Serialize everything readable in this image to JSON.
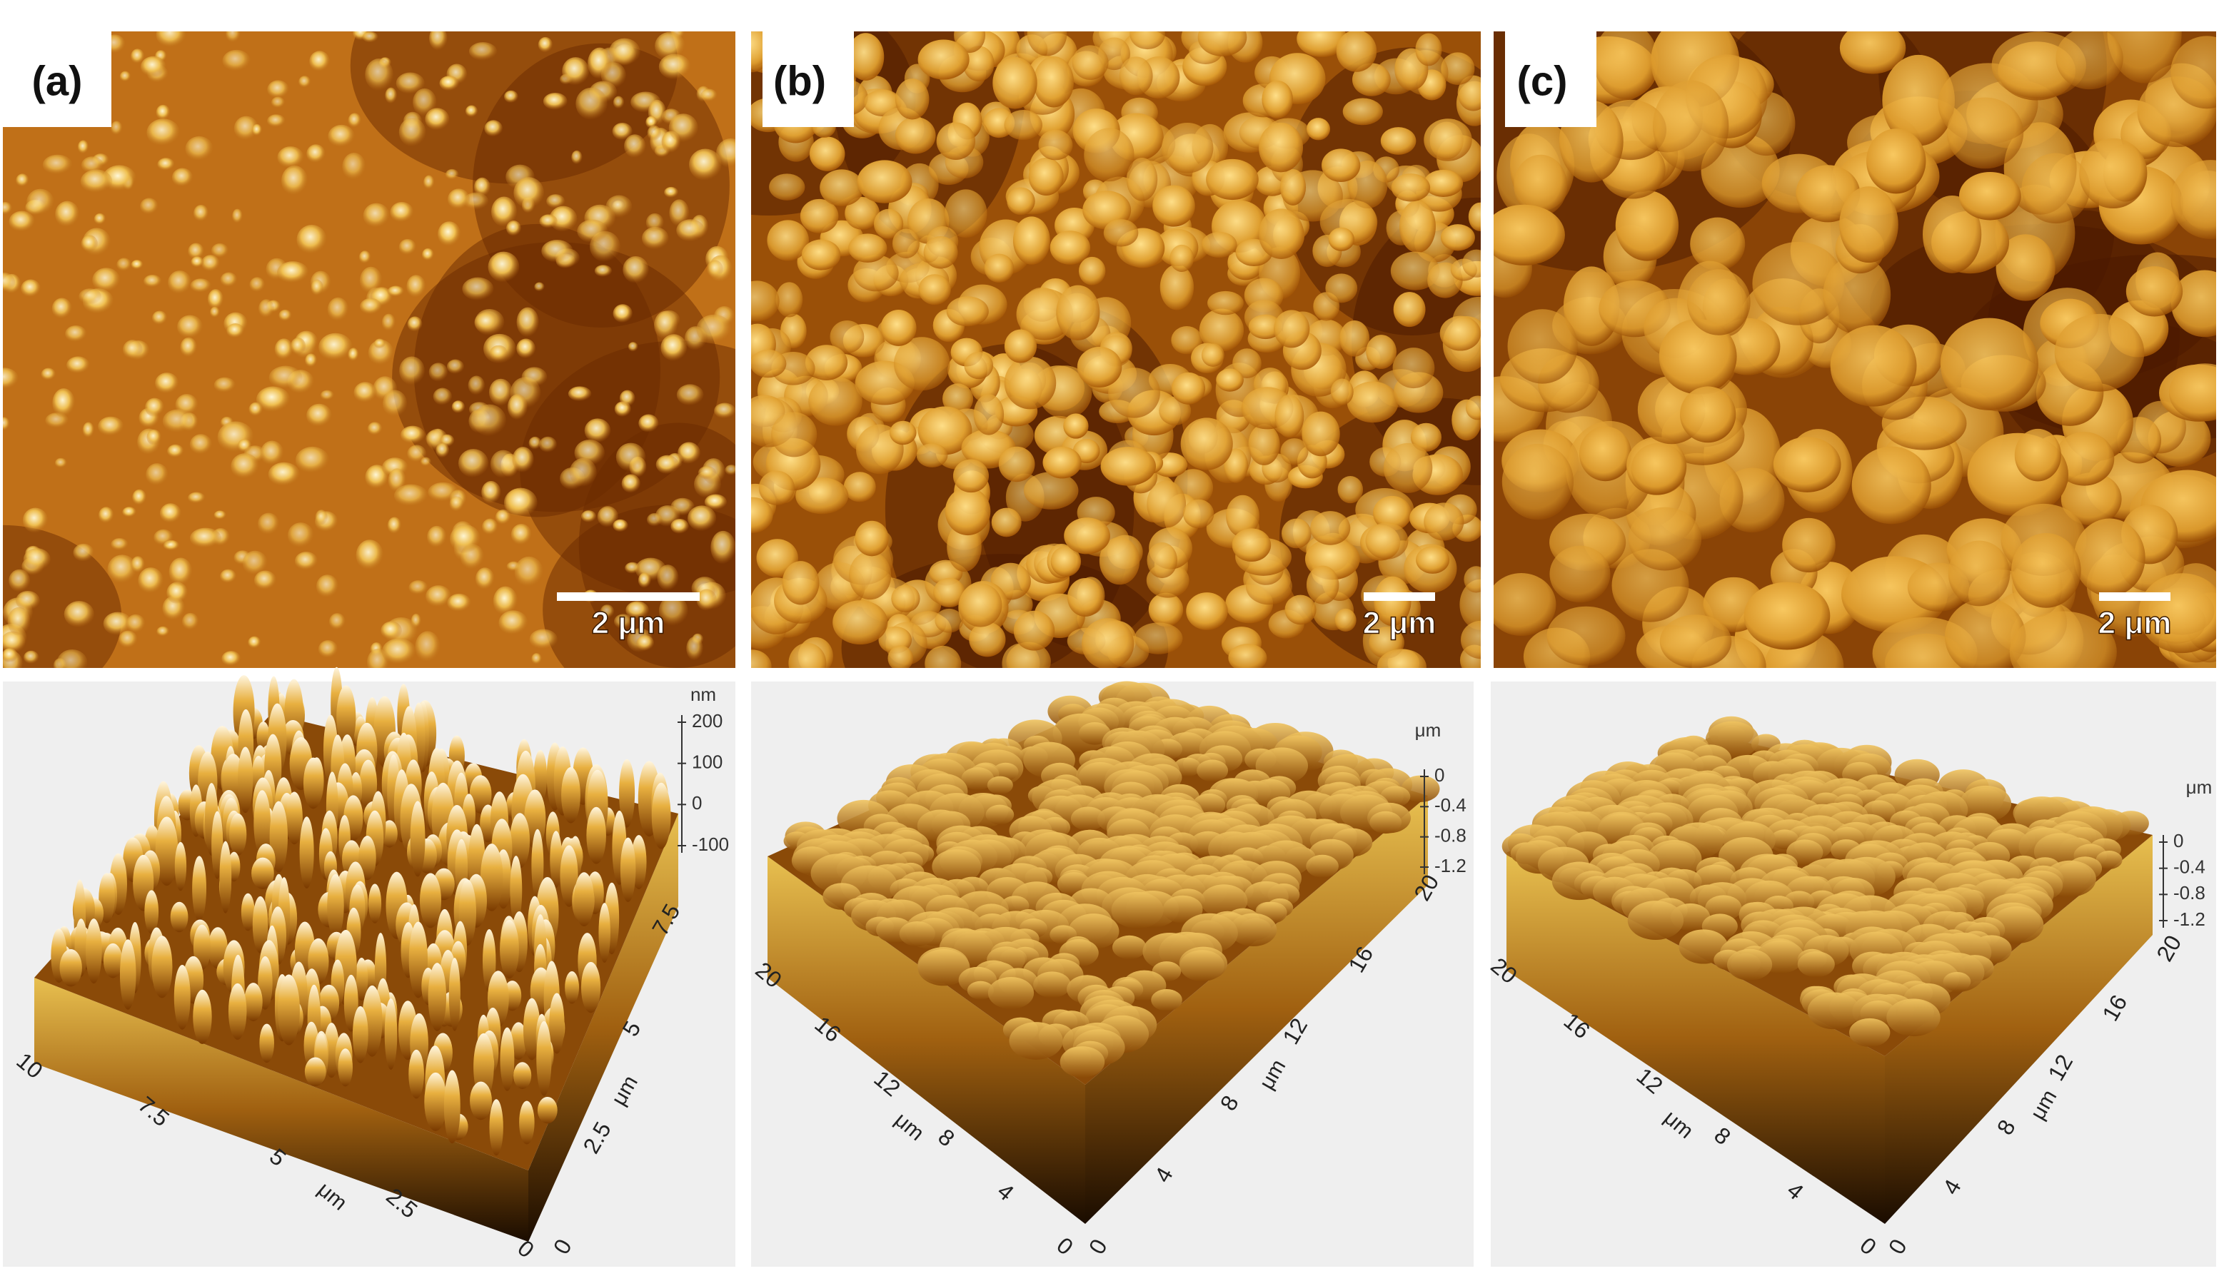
{
  "panels": [
    {
      "label": "(a)",
      "scale_bar": "2 μm",
      "z_unit": "nm",
      "z_ticks": [
        "200",
        "100",
        "0",
        "-100"
      ],
      "left_ticks": [
        "10",
        "7.5",
        "5",
        "2.5",
        "0"
      ],
      "left_unit": "μm",
      "right_ticks": [
        "0",
        "2.5",
        "5",
        "7.5"
      ],
      "right_unit": "μm"
    },
    {
      "label": "(b)",
      "scale_bar": "2 μm",
      "z_unit": "μm",
      "z_ticks": [
        "0",
        "-0.4",
        "-0.8",
        "-1.2"
      ],
      "left_ticks": [
        "20",
        "16",
        "12",
        "8",
        "4",
        "0"
      ],
      "left_unit": "μm",
      "right_ticks": [
        "0",
        "4",
        "8",
        "12",
        "16",
        "20"
      ],
      "right_unit": "μm"
    },
    {
      "label": "(c)",
      "scale_bar": "2 μm",
      "z_unit": "μm",
      "z_ticks": [
        "0",
        "-0.4",
        "-0.8",
        "-1.2"
      ],
      "left_ticks": [
        "20",
        "16",
        "12",
        "8",
        "4",
        "0"
      ],
      "left_unit": "μm",
      "right_ticks": [
        "0",
        "4",
        "8",
        "12",
        "16",
        "20"
      ],
      "right_unit": "μm"
    }
  ]
}
